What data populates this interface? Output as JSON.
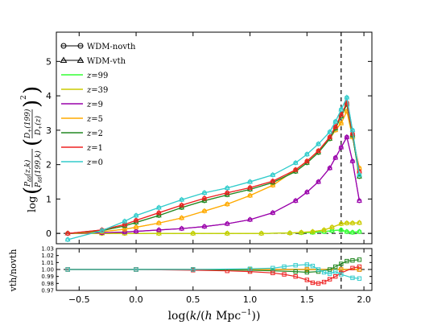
{
  "chart_data": [
    {
      "type": "line",
      "panel": "main",
      "xlim": [
        -0.7,
        2.07
      ],
      "ylim": [
        -0.3,
        5.85
      ],
      "xticks": [
        -0.5,
        0.0,
        0.5,
        1.0,
        1.5,
        2.0
      ],
      "yticks": [
        0,
        1,
        2,
        3,
        4,
        5
      ],
      "ylabel": "log(P_δδ(z,k)/P_δδ(199,k) (D+(199)/D+(z))²)",
      "legend_position": "upper-left",
      "vline_x": 1.8,
      "hline_y": 0,
      "series": [
        {
          "name": "z=99",
          "color": "#33ff33",
          "x": [
            -0.6,
            -0.3,
            -0.1,
            0.2,
            0.5,
            0.8,
            1.1,
            1.35,
            1.45,
            1.55,
            1.65,
            1.72,
            1.8,
            1.85,
            1.9,
            1.96
          ],
          "vth": [
            0,
            0,
            0,
            0,
            0,
            0,
            0,
            0.01,
            0.02,
            0.03,
            0.05,
            0.08,
            0.1,
            0.05,
            0.03,
            0.05
          ],
          "novth": [
            0,
            0,
            0,
            0,
            0,
            0,
            0,
            0.01,
            0.02,
            0.03,
            0.05,
            0.08,
            0.1,
            0.05,
            0.03,
            0.05
          ]
        },
        {
          "name": "z=39",
          "color": "#cccc00",
          "x": [
            -0.6,
            -0.3,
            -0.1,
            0.2,
            0.5,
            0.8,
            1.1,
            1.35,
            1.45,
            1.55,
            1.65,
            1.72,
            1.8,
            1.85,
            1.9,
            1.96
          ],
          "vth": [
            0,
            0,
            0,
            0,
            0,
            0,
            0,
            0.01,
            0.03,
            0.05,
            0.1,
            0.18,
            0.28,
            0.3,
            0.3,
            0.31
          ],
          "novth": [
            0,
            0,
            0,
            0,
            0,
            0,
            0,
            0.01,
            0.03,
            0.05,
            0.1,
            0.18,
            0.28,
            0.3,
            0.3,
            0.31
          ]
        },
        {
          "name": "z=9",
          "color": "#9900aa",
          "x": [
            -0.6,
            -0.3,
            -0.1,
            0.0,
            0.2,
            0.4,
            0.6,
            0.8,
            1.0,
            1.2,
            1.4,
            1.5,
            1.6,
            1.7,
            1.75,
            1.8,
            1.85,
            1.9,
            1.96
          ],
          "vth": [
            0,
            0.02,
            0.04,
            0.06,
            0.1,
            0.14,
            0.2,
            0.28,
            0.4,
            0.6,
            0.95,
            1.2,
            1.5,
            1.9,
            2.2,
            2.5,
            2.8,
            2.1,
            0.95
          ],
          "novth": [
            0,
            0.02,
            0.04,
            0.06,
            0.1,
            0.14,
            0.2,
            0.28,
            0.4,
            0.6,
            0.95,
            1.2,
            1.5,
            1.9,
            2.2,
            2.5,
            2.8,
            2.1,
            0.95
          ]
        },
        {
          "name": "z=5",
          "color": "#ffaa00",
          "x": [
            -0.6,
            -0.3,
            -0.1,
            0.0,
            0.2,
            0.4,
            0.6,
            0.8,
            1.0,
            1.2,
            1.4,
            1.5,
            1.6,
            1.7,
            1.75,
            1.8,
            1.85,
            1.9,
            1.96
          ],
          "vth": [
            0,
            0.05,
            0.12,
            0.18,
            0.3,
            0.45,
            0.65,
            0.85,
            1.1,
            1.4,
            1.85,
            2.1,
            2.4,
            2.75,
            3.0,
            3.2,
            3.55,
            2.8,
            1.9
          ],
          "novth": [
            0,
            0.05,
            0.12,
            0.18,
            0.3,
            0.45,
            0.65,
            0.85,
            1.1,
            1.4,
            1.85,
            2.1,
            2.4,
            2.75,
            3.0,
            3.2,
            3.55,
            2.8,
            1.9
          ]
        },
        {
          "name": "z=2",
          "color": "#228822",
          "x": [
            -0.6,
            -0.3,
            -0.1,
            0.0,
            0.2,
            0.4,
            0.6,
            0.8,
            1.0,
            1.2,
            1.4,
            1.5,
            1.6,
            1.7,
            1.75,
            1.8,
            1.85,
            1.9,
            1.96
          ],
          "vth": [
            0,
            0.08,
            0.22,
            0.32,
            0.52,
            0.75,
            0.95,
            1.12,
            1.28,
            1.48,
            1.8,
            2.05,
            2.35,
            2.75,
            3.05,
            3.4,
            3.75,
            2.85,
            1.65
          ],
          "novth": [
            0,
            0.08,
            0.22,
            0.32,
            0.52,
            0.75,
            0.95,
            1.12,
            1.28,
            1.48,
            1.8,
            2.05,
            2.35,
            2.75,
            3.05,
            3.4,
            3.75,
            2.85,
            1.65
          ]
        },
        {
          "name": "z=1",
          "color": "#ee2222",
          "x": [
            -0.6,
            -0.3,
            -0.1,
            0.0,
            0.2,
            0.4,
            0.6,
            0.8,
            1.0,
            1.2,
            1.4,
            1.5,
            1.6,
            1.7,
            1.75,
            1.8,
            1.85,
            1.9,
            1.96
          ],
          "vth": [
            0,
            0.1,
            0.26,
            0.38,
            0.6,
            0.82,
            1.02,
            1.18,
            1.33,
            1.52,
            1.85,
            2.1,
            2.4,
            2.8,
            3.1,
            3.45,
            3.8,
            2.9,
            1.8
          ],
          "novth": [
            0,
            0.1,
            0.26,
            0.38,
            0.6,
            0.82,
            1.02,
            1.18,
            1.33,
            1.52,
            1.85,
            2.1,
            2.4,
            2.8,
            3.1,
            3.45,
            3.8,
            2.9,
            1.8
          ]
        },
        {
          "name": "z=0",
          "color": "#33cccc",
          "x": [
            -0.6,
            -0.3,
            -0.1,
            0.0,
            0.2,
            0.4,
            0.6,
            0.8,
            1.0,
            1.2,
            1.4,
            1.5,
            1.6,
            1.7,
            1.75,
            1.8,
            1.85,
            1.9,
            1.96
          ],
          "vth": [
            -0.18,
            0.08,
            0.35,
            0.52,
            0.75,
            0.98,
            1.18,
            1.32,
            1.5,
            1.7,
            2.05,
            2.3,
            2.6,
            2.95,
            3.25,
            3.6,
            3.95,
            3.0,
            1.7
          ],
          "novth": [
            -0.18,
            0.08,
            0.35,
            0.52,
            0.75,
            0.98,
            1.18,
            1.32,
            1.5,
            1.7,
            2.05,
            2.3,
            2.6,
            2.95,
            3.25,
            3.6,
            3.95,
            3.0,
            1.7
          ]
        }
      ]
    },
    {
      "type": "line",
      "panel": "ratio",
      "ylabel": "vth/novth",
      "xlabel": "log(k/(h Mpc⁻¹))",
      "xlim": [
        -0.7,
        2.07
      ],
      "ylim": [
        0.97,
        1.03
      ],
      "yticks": [
        0.97,
        0.98,
        0.99,
        1.0,
        1.01,
        1.02,
        1.03
      ],
      "ytick_labels": [
        "0.97",
        "0.98",
        "0.99",
        "1.00",
        "1.01",
        "1.02",
        "1.03"
      ],
      "xticks": [
        -0.5,
        0.0,
        0.5,
        1.0,
        1.5,
        2.0
      ],
      "xtick_labels": [
        "−0.5",
        "0.0",
        "0.5",
        "1.0",
        "1.5",
        "2.0"
      ],
      "vline_x": 1.8,
      "hline_y": 1.0,
      "series": [
        {
          "name": "z=0",
          "color": "#33cccc",
          "x": [
            -0.6,
            0.0,
            0.5,
            1.0,
            1.2,
            1.3,
            1.4,
            1.5,
            1.55,
            1.6,
            1.65,
            1.7,
            1.75,
            1.8,
            1.9,
            1.96
          ],
          "y": [
            1.0,
            1.0,
            1.0,
            1.001,
            1.002,
            1.004,
            1.006,
            1.007,
            1.005,
            1.0,
            0.996,
            0.994,
            0.997,
            0.993,
            0.988,
            0.987
          ]
        },
        {
          "name": "z=1",
          "color": "#ee2222",
          "x": [
            -0.6,
            0.0,
            0.5,
            0.8,
            1.0,
            1.2,
            1.3,
            1.4,
            1.5,
            1.55,
            1.6,
            1.65,
            1.7,
            1.75,
            1.8,
            1.9,
            1.96
          ],
          "y": [
            1.0,
            1.0,
            0.999,
            0.998,
            0.997,
            0.995,
            0.993,
            0.99,
            0.985,
            0.981,
            0.98,
            0.982,
            0.986,
            0.99,
            0.995,
            1.002,
            1.004
          ]
        },
        {
          "name": "z=2",
          "color": "#228822",
          "x": [
            -0.6,
            0.0,
            0.5,
            1.0,
            1.2,
            1.4,
            1.5,
            1.6,
            1.7,
            1.75,
            1.8,
            1.85,
            1.9,
            1.96
          ],
          "y": [
            1.0,
            1.0,
            1.0,
            0.999,
            0.998,
            0.997,
            0.996,
            0.997,
            1.0,
            1.004,
            1.008,
            1.012,
            1.013,
            1.014
          ]
        },
        {
          "name": "z=5",
          "color": "#ffaa00",
          "x": [
            -0.6,
            0.0,
            0.5,
            1.0,
            1.5,
            1.8,
            1.96
          ],
          "y": [
            1.0,
            1.0,
            1.0,
            1.0,
            1.0,
            1.0,
            1.0
          ]
        },
        {
          "name": "z=9",
          "color": "#9900aa",
          "x": [
            -0.6,
            0.0,
            0.5,
            1.0,
            1.5,
            1.8,
            1.96
          ],
          "y": [
            1.0,
            1.0,
            1.0,
            1.0,
            1.0,
            1.0,
            1.0
          ]
        },
        {
          "name": "z=39",
          "color": "#cccc00",
          "x": [
            -0.6,
            0.0,
            0.5,
            1.0,
            1.5,
            1.8,
            1.96
          ],
          "y": [
            1.0,
            1.0,
            1.0,
            1.0,
            1.0,
            1.0,
            1.0
          ]
        },
        {
          "name": "z=99",
          "color": "#33ff33",
          "x": [
            -0.6,
            0.0,
            0.5,
            1.0,
            1.5,
            1.8,
            1.96
          ],
          "y": [
            1.0,
            1.0,
            1.0,
            1.0,
            1.0,
            1.0,
            1.0
          ]
        }
      ]
    }
  ],
  "legend": {
    "style_entries": [
      {
        "label": "WDM-novth",
        "marker": "circle"
      },
      {
        "label": "WDM-vth",
        "marker": "triangle"
      }
    ],
    "series_entries": [
      {
        "label": "z=99",
        "prefix": "z",
        "value": "=99",
        "color": "#33ff33"
      },
      {
        "label": "z=39",
        "prefix": "z",
        "value": "=39",
        "color": "#cccc00"
      },
      {
        "label": "z=9",
        "prefix": "z",
        "value": "=9",
        "color": "#9900aa"
      },
      {
        "label": "z=5",
        "prefix": "z",
        "value": "=5",
        "color": "#ffaa00"
      },
      {
        "label": "z=2",
        "prefix": "z",
        "value": "=2",
        "color": "#228822"
      },
      {
        "label": "z=1",
        "prefix": "z",
        "value": "=1",
        "color": "#ee2222"
      },
      {
        "label": "z=0",
        "prefix": "z",
        "value": "=0",
        "color": "#33cccc"
      }
    ]
  },
  "main_ytick_labels": [
    "0",
    "1",
    "2",
    "3",
    "4",
    "5"
  ],
  "ylabel_text": {
    "log": "log",
    "num_top": "P",
    "num_sub": "δδ",
    "num_args": "(z,k)",
    "den_top": "P",
    "den_sub": "δδ",
    "den_args": "(199,k)",
    "d_num": "D",
    "d_num_sub": "+",
    "d_num_args": "(199)",
    "d_den": "D",
    "d_den_sub": "+",
    "d_den_args": "(z)",
    "power": "2"
  },
  "xlabel_text": {
    "log": "log",
    "k": "k",
    "slash": "/",
    "h": "h",
    "unit": "Mpc",
    "exp": "−1"
  },
  "ratio_ylabel": "vth/novth"
}
